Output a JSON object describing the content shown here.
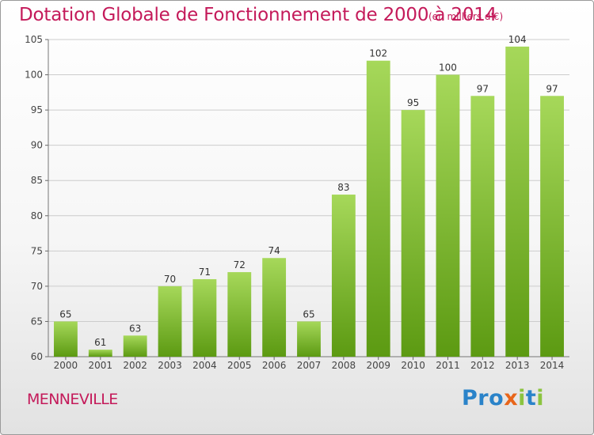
{
  "header": {
    "title": "Dotation Globale de Fonctionnement de 2000 à 2014",
    "subtitle": "(en milliers d'€)"
  },
  "footer": {
    "commune": "MENNEVILLE",
    "logo_text": "Proxiti",
    "logo_colors": [
      "#2a83c9",
      "#2a83c9",
      "#2a83c9",
      "#e8651a",
      "#8bc43f",
      "#2a83c9",
      "#8bc43f"
    ]
  },
  "colors": {
    "bar_light": "#a6d85a",
    "bar_dark": "#5c9a12",
    "accent": "#c41a5a",
    "grid": "#cccccc"
  },
  "chart_data": {
    "type": "bar",
    "categories": [
      "2000",
      "2001",
      "2002",
      "2003",
      "2004",
      "2005",
      "2006",
      "2007",
      "2008",
      "2009",
      "2010",
      "2011",
      "2012",
      "2013",
      "2014"
    ],
    "values": [
      65,
      61,
      63,
      70,
      71,
      72,
      74,
      65,
      83,
      102,
      95,
      100,
      97,
      104,
      97
    ],
    "ylim": [
      60,
      105
    ],
    "yticks": [
      60,
      65,
      70,
      75,
      80,
      85,
      90,
      95,
      100,
      105
    ],
    "grid": true,
    "xlabel": "",
    "ylabel": ""
  }
}
